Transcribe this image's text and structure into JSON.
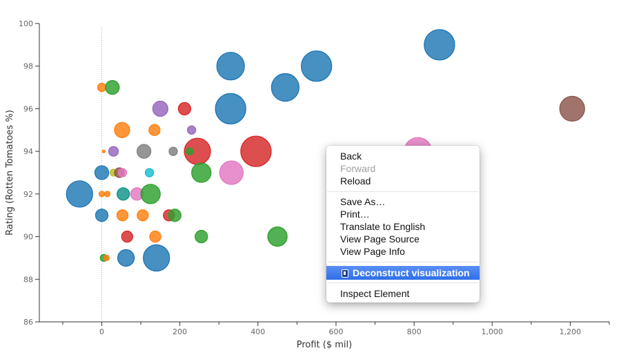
{
  "chart_data": {
    "type": "scatter",
    "title": "",
    "xlabel": "Profit ($ mil)",
    "ylabel": "Rating (Rotten Tomatoes %)",
    "xlim": [
      -160,
      1300
    ],
    "ylim": [
      86,
      100
    ],
    "x_ticks": [
      0,
      200,
      400,
      600,
      800,
      1000,
      1200
    ],
    "x_tick_labels": [
      "0",
      "200",
      "400",
      "600",
      "800",
      "1,000",
      "1,200"
    ],
    "y_ticks": [
      86,
      88,
      90,
      92,
      94,
      96,
      98,
      100
    ],
    "y_tick_labels": [
      "86",
      "88",
      "90",
      "92",
      "94",
      "96",
      "98",
      "100"
    ],
    "grid": false,
    "legend": "none",
    "reference_line_x": 0,
    "colors": {
      "blue": "#1f77b4",
      "orange": "#ff7f0e",
      "green": "#2ca02c",
      "red": "#d62728",
      "purple": "#9467bd",
      "brown": "#8c564b",
      "pink": "#e377c2",
      "gray": "#7f7f7f",
      "olive": "#bcbd22",
      "cyan": "#17becf",
      "teal": "#0e9488"
    },
    "points": [
      {
        "x": 865,
        "y": 99,
        "r": 22,
        "color": "blue"
      },
      {
        "x": 330,
        "y": 98,
        "r": 20,
        "color": "blue"
      },
      {
        "x": 550,
        "y": 98,
        "r": 22,
        "color": "blue"
      },
      {
        "x": 470,
        "y": 97,
        "r": 20,
        "color": "blue"
      },
      {
        "x": 330,
        "y": 96,
        "r": 22,
        "color": "blue"
      },
      {
        "x": 1205,
        "y": 96,
        "r": 18,
        "color": "brown"
      },
      {
        "x": 0,
        "y": 97,
        "r": 6,
        "color": "orange"
      },
      {
        "x": 27,
        "y": 97,
        "r": 10,
        "color": "green"
      },
      {
        "x": 150,
        "y": 96,
        "r": 11,
        "color": "purple"
      },
      {
        "x": 212,
        "y": 96,
        "r": 9,
        "color": "red"
      },
      {
        "x": 52,
        "y": 95,
        "r": 11,
        "color": "orange"
      },
      {
        "x": 135,
        "y": 95,
        "r": 8,
        "color": "orange"
      },
      {
        "x": 230,
        "y": 95,
        "r": 6,
        "color": "purple"
      },
      {
        "x": 5,
        "y": 94,
        "r": 2,
        "color": "orange"
      },
      {
        "x": 30,
        "y": 94,
        "r": 7,
        "color": "purple"
      },
      {
        "x": 108,
        "y": 94,
        "r": 10,
        "color": "gray"
      },
      {
        "x": 183,
        "y": 94,
        "r": 6,
        "color": "gray"
      },
      {
        "x": 245,
        "y": 94,
        "r": 19,
        "color": "red"
      },
      {
        "x": 225,
        "y": 94,
        "r": 5,
        "color": "green"
      },
      {
        "x": 395,
        "y": 94,
        "r": 22,
        "color": "red"
      },
      {
        "x": 810,
        "y": 94,
        "r": 20,
        "color": "pink"
      },
      {
        "x": 0,
        "y": 93,
        "r": 10,
        "color": "blue"
      },
      {
        "x": 30,
        "y": 93,
        "r": 5,
        "color": "olive"
      },
      {
        "x": 45,
        "y": 93,
        "r": 7,
        "color": "brown"
      },
      {
        "x": 53,
        "y": 93,
        "r": 6,
        "color": "pink"
      },
      {
        "x": 122,
        "y": 93,
        "r": 6,
        "color": "cyan"
      },
      {
        "x": 255,
        "y": 93,
        "r": 14,
        "color": "green"
      },
      {
        "x": 332,
        "y": 93,
        "r": 17,
        "color": "pink"
      },
      {
        "x": -57,
        "y": 92,
        "r": 19,
        "color": "blue"
      },
      {
        "x": 0,
        "y": 92,
        "r": 4,
        "color": "orange"
      },
      {
        "x": 14,
        "y": 92,
        "r": 4,
        "color": "orange"
      },
      {
        "x": 55,
        "y": 92,
        "r": 9,
        "color": "teal"
      },
      {
        "x": 90,
        "y": 92,
        "r": 9,
        "color": "pink"
      },
      {
        "x": 125,
        "y": 92,
        "r": 14,
        "color": "green"
      },
      {
        "x": 0,
        "y": 91,
        "r": 9,
        "color": "blue"
      },
      {
        "x": 53,
        "y": 91,
        "r": 8,
        "color": "orange"
      },
      {
        "x": 105,
        "y": 91,
        "r": 8,
        "color": "orange"
      },
      {
        "x": 172,
        "y": 91,
        "r": 8,
        "color": "red"
      },
      {
        "x": 187,
        "y": 91,
        "r": 9,
        "color": "green"
      },
      {
        "x": 65,
        "y": 90,
        "r": 8,
        "color": "red"
      },
      {
        "x": 137,
        "y": 90,
        "r": 8,
        "color": "orange"
      },
      {
        "x": 255,
        "y": 90,
        "r": 9,
        "color": "green"
      },
      {
        "x": 450,
        "y": 90,
        "r": 14,
        "color": "green"
      },
      {
        "x": 5,
        "y": 89,
        "r": 5,
        "color": "green"
      },
      {
        "x": 12,
        "y": 89,
        "r": 4,
        "color": "orange"
      },
      {
        "x": 62,
        "y": 89,
        "r": 12,
        "color": "blue"
      },
      {
        "x": 140,
        "y": 89,
        "r": 19,
        "color": "blue"
      }
    ]
  },
  "context_menu": {
    "items": [
      {
        "label": "Back",
        "enabled": true
      },
      {
        "label": "Forward",
        "enabled": false
      },
      {
        "label": "Reload",
        "enabled": true
      },
      {
        "label": "Save As…",
        "enabled": true
      },
      {
        "label": "Print…",
        "enabled": true
      },
      {
        "label": "Translate to English",
        "enabled": true
      },
      {
        "label": "View Page Source",
        "enabled": true
      },
      {
        "label": "View Page Info",
        "enabled": true
      },
      {
        "label": "Deconstruct visualization",
        "enabled": true,
        "highlighted": true,
        "icon": "extension-icon"
      },
      {
        "label": "Inspect Element",
        "enabled": true
      }
    ]
  }
}
